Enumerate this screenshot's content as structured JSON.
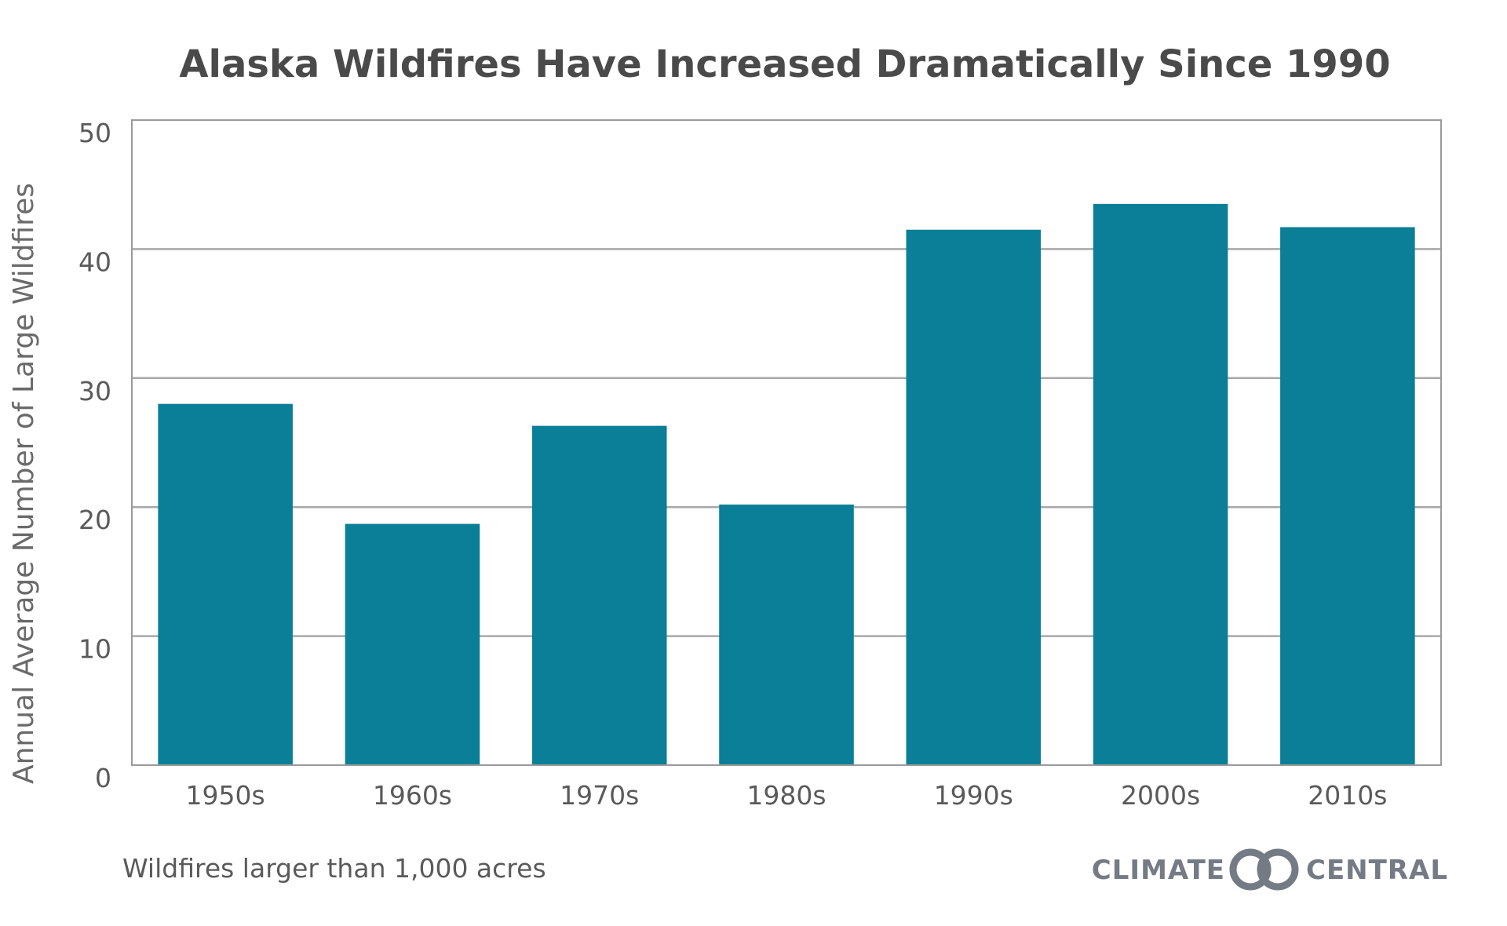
{
  "chart_data": {
    "type": "bar",
    "title": "Alaska Wildfires Have Increased Dramatically Since 1990",
    "ylabel": "Annual Average Number of Large Wildfires",
    "xlabel": "",
    "categories": [
      "1950s",
      "1960s",
      "1970s",
      "1980s",
      "1990s",
      "2000s",
      "2010s"
    ],
    "values": [
      28,
      18.7,
      26.3,
      20.2,
      41.5,
      43.5,
      41.7
    ],
    "ylim": [
      0,
      50
    ],
    "yticks": [
      "0",
      "10",
      "20",
      "30",
      "40",
      "50"
    ],
    "grid": true,
    "bar_color": "#0a7f97"
  },
  "footnote": "Wildfires larger than 1,000 acres",
  "brand": {
    "left": "CLIMATE",
    "right": "CENTRAL",
    "icon": "climate-central-rings-logo",
    "color": "#747b85"
  }
}
